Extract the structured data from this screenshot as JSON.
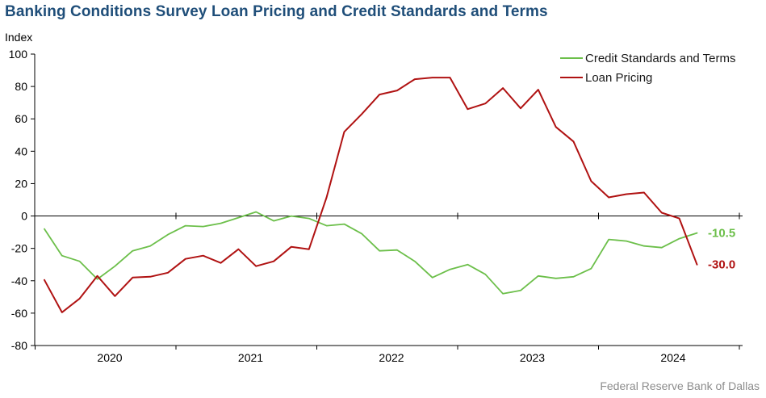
{
  "title": "Banking Conditions Survey Loan Pricing and Credit Standards and Terms",
  "source": "Federal Reserve Bank of Dallas",
  "colors": {
    "credit": "#6cbf4a",
    "pricing": "#b01212",
    "title": "#1f4e79"
  },
  "chart_data": {
    "type": "line",
    "ylabel": "Index",
    "ylim": [
      -80,
      100
    ],
    "yticks": [
      -80,
      -60,
      -40,
      -20,
      0,
      20,
      40,
      60,
      80,
      100
    ],
    "x_year_labels": [
      "2020",
      "2021",
      "2022",
      "2023",
      "2024"
    ],
    "x_start": "2019-07",
    "x_step_months": 1.5,
    "legend_position": "top-right",
    "grid": false,
    "series": [
      {
        "name": "Credit Standards and Terms",
        "color": "#6cbf4a",
        "end_label": "-10.5",
        "values": [
          -8,
          -24.5,
          -28,
          -39,
          -31,
          -21.5,
          -18.5,
          -11.5,
          -6,
          -6.5,
          -4.5,
          -1,
          2.5,
          -3,
          0,
          -1.5,
          -6,
          -5,
          -11,
          -21.5,
          -21,
          -28,
          -38,
          -33,
          -30,
          -36,
          -48,
          -46,
          -37,
          -38.5,
          -37.5,
          -32.5,
          -14.5,
          -15.5,
          -18.5,
          -19.5,
          -14,
          -10.5
        ]
      },
      {
        "name": "Loan Pricing",
        "color": "#b01212",
        "end_label": "-30.0",
        "values": [
          -39.5,
          -59.5,
          -51,
          -37,
          -49.5,
          -38,
          -37.5,
          -35,
          -26.5,
          -24.5,
          -29,
          -20.5,
          -31,
          -28,
          -19,
          -20.5,
          11.5,
          52,
          63,
          75,
          77.5,
          84.5,
          85.5,
          85.5,
          66,
          69.5,
          79,
          66.5,
          78,
          55,
          46,
          21.5,
          11.5,
          13.5,
          14.5,
          2,
          -1.5,
          -30
        ]
      }
    ]
  }
}
